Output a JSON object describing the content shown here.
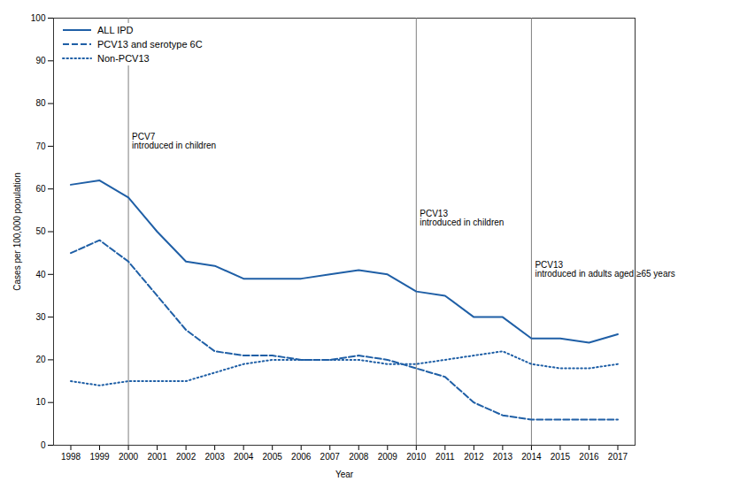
{
  "chart_data": {
    "type": "line",
    "x": [
      1998,
      1999,
      2000,
      2001,
      2002,
      2003,
      2004,
      2005,
      2006,
      2007,
      2008,
      2009,
      2010,
      2011,
      2012,
      2013,
      2014,
      2015,
      2016,
      2017
    ],
    "series": [
      {
        "name": "ALL IPD",
        "color": "#1f5fa6",
        "line_style": "solid",
        "values": [
          61,
          62,
          58,
          50,
          43,
          42,
          39,
          39,
          39,
          40,
          41,
          40,
          36,
          35,
          30,
          30,
          25,
          25,
          24,
          26
        ]
      },
      {
        "name": "PCV13 and serotype 6C",
        "color": "#1f5fa6",
        "line_style": "dashed",
        "values": [
          45,
          48,
          43,
          35,
          27,
          22,
          21,
          21,
          20,
          20,
          21,
          20,
          18,
          16,
          10,
          7,
          6,
          6,
          6,
          6
        ]
      },
      {
        "name": "Non-PCV13",
        "color": "#1f5fa6",
        "line_style": "dotted",
        "values": [
          15,
          14,
          15,
          15,
          15,
          17,
          19,
          20,
          20,
          20,
          20,
          19,
          19,
          20,
          21,
          22,
          19,
          18,
          18,
          19
        ]
      }
    ],
    "annotations": [
      {
        "x": 2000,
        "y": 73,
        "lines": [
          "PCV7",
          "introduced in children"
        ],
        "color": "#7f7f7f"
      },
      {
        "x": 2010,
        "y": 55,
        "lines": [
          "PCV13",
          "introduced in children"
        ],
        "color": "#7f7f7f"
      },
      {
        "x": 2014,
        "y": 43,
        "lines": [
          "PCV13",
          "introduced in adults aged ≥65 years"
        ],
        "color": "#7f7f7f"
      }
    ],
    "xlabel": "Year",
    "ylabel": "Cases per 100,000 population",
    "xlim": [
      1997.4,
      2017.6
    ],
    "xticks": [
      1998,
      1999,
      2000,
      2001,
      2002,
      2003,
      2004,
      2005,
      2006,
      2007,
      2008,
      2009,
      2010,
      2011,
      2012,
      2013,
      2014,
      2015,
      2016,
      2017
    ],
    "ylim": [
      0,
      100
    ],
    "yticks": [
      0,
      10,
      20,
      30,
      40,
      50,
      60,
      70,
      80,
      90,
      100
    ],
    "legend": "upper left",
    "grid": false
  }
}
